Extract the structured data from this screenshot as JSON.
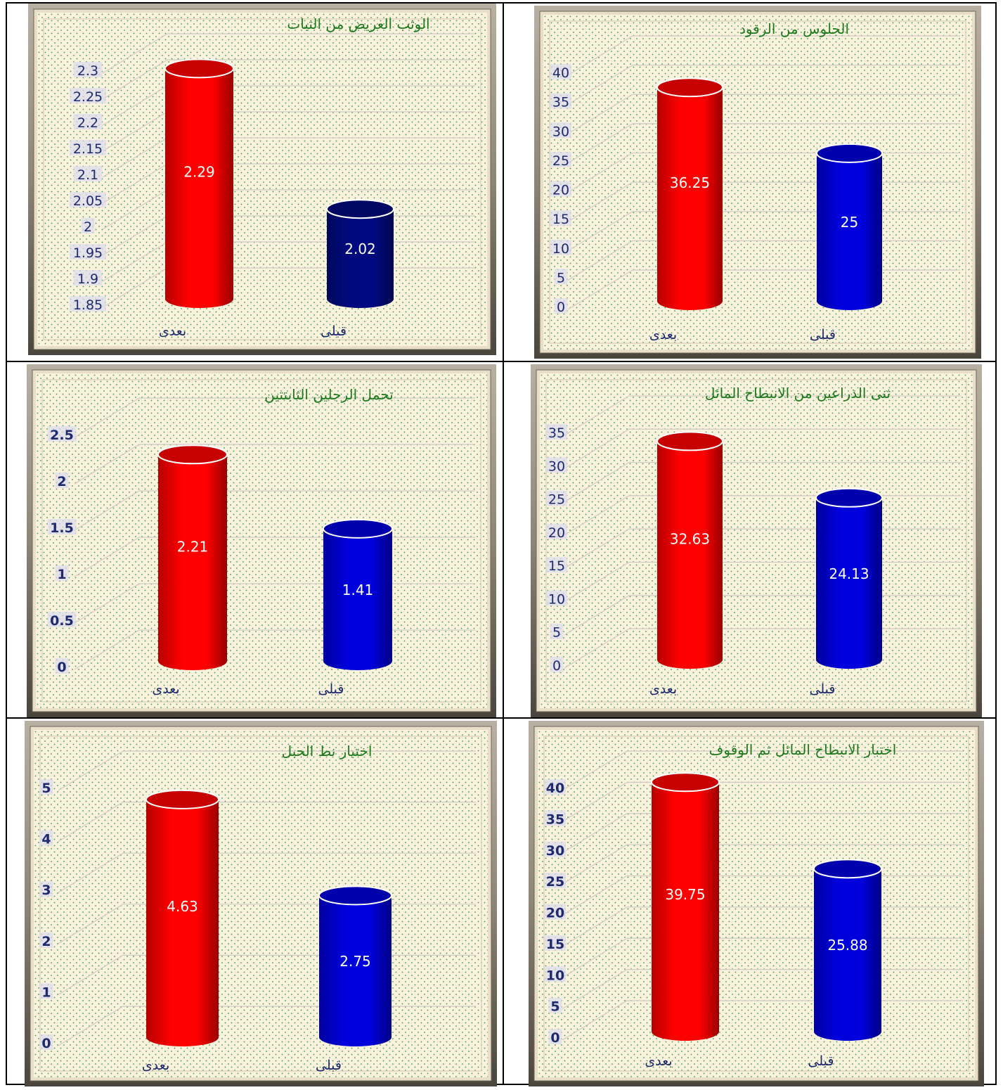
{
  "chart_data": [
    {
      "id": "c1",
      "type": "bar",
      "title": "الوثب العريض من الثبات",
      "categories": [
        "بعدى",
        "قبلى"
      ],
      "values": [
        2.29,
        2.02
      ],
      "value_labels": [
        "2.29",
        "2.02"
      ],
      "yticks": [
        "1.85",
        "1.9",
        "1.95",
        "2",
        "2.05",
        "2.1",
        "2.15",
        "2.2",
        "2.25",
        "2.3"
      ],
      "ylim": [
        1.85,
        2.3
      ],
      "colors": [
        "#ff0000",
        "#000a80"
      ],
      "grid": true
    },
    {
      "id": "c2",
      "type": "bar",
      "title": "الجلوس من الرقود",
      "categories": [
        "بعدى",
        "قبلى"
      ],
      "values": [
        36.25,
        25
      ],
      "value_labels": [
        "36.25",
        "25"
      ],
      "yticks": [
        "0",
        "5",
        "10",
        "15",
        "20",
        "25",
        "30",
        "35",
        "40"
      ],
      "ylim": [
        0,
        40
      ],
      "colors": [
        "#ff0000",
        "#0000dd"
      ],
      "grid": true
    },
    {
      "id": "c3",
      "type": "bar",
      "title": "تحمل الرجلين الثابتتين",
      "categories": [
        "بعدى",
        "قبلى"
      ],
      "values": [
        2.21,
        1.41
      ],
      "value_labels": [
        "2.21",
        "1.41"
      ],
      "yticks": [
        "0",
        "0.5",
        "1",
        "1.5",
        "2",
        "2.5"
      ],
      "ylim": [
        0,
        2.5
      ],
      "colors": [
        "#ff0000",
        "#0000dd"
      ],
      "grid": true
    },
    {
      "id": "c4",
      "type": "bar",
      "title": "ثنى الذراعين من الانبطاح المائل",
      "categories": [
        "بعدى",
        "قبلى"
      ],
      "values": [
        32.63,
        24.13
      ],
      "value_labels": [
        "32.63",
        "24.13"
      ],
      "yticks": [
        "0",
        "5",
        "10",
        "15",
        "20",
        "25",
        "30",
        "35"
      ],
      "ylim": [
        0,
        35
      ],
      "colors": [
        "#ff0000",
        "#0000dd"
      ],
      "grid": true
    },
    {
      "id": "c5",
      "type": "bar",
      "title": "اختبار نط الحبل",
      "categories": [
        "بعدى",
        "قبلى"
      ],
      "values": [
        4.63,
        2.75
      ],
      "value_labels": [
        "4.63",
        "2.75"
      ],
      "yticks": [
        "0",
        "1",
        "2",
        "3",
        "4",
        "5"
      ],
      "ylim": [
        0,
        5
      ],
      "colors": [
        "#ff0000",
        "#0000dd"
      ],
      "grid": true
    },
    {
      "id": "c6",
      "type": "bar",
      "title": "اختبار الانبطاح المائل ثم الوقوف",
      "categories": [
        "بعدى",
        "قبلى"
      ],
      "values": [
        39.75,
        25.88
      ],
      "value_labels": [
        "39.75",
        "25.88"
      ],
      "yticks": [
        "0",
        "5",
        "10",
        "15",
        "20",
        "25",
        "30",
        "35",
        "40"
      ],
      "ylim": [
        0,
        40
      ],
      "colors": [
        "#ff0000",
        "#0000dd"
      ],
      "grid": true
    }
  ]
}
